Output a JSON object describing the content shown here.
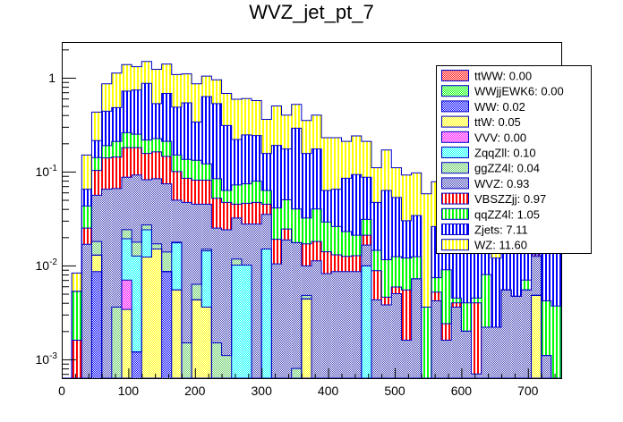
{
  "chart_data": {
    "type": "bar",
    "subtype": "stacked-histogram",
    "title": "WVZ_jet_pt_7",
    "xlabel": "",
    "ylabel": "",
    "y_scale": "log",
    "xlim": [
      0,
      750
    ],
    "ylim": [
      0.00063,
      2.4
    ],
    "bin_width": 15,
    "n_bins": 50,
    "x_ticks": [
      "0",
      "100",
      "200",
      "300",
      "400",
      "500",
      "600",
      "700"
    ],
    "y_ticks": [
      {
        "value": 1,
        "base": "1",
        "exp": ""
      },
      {
        "value": 0.1,
        "base": "10",
        "exp": "-1"
      },
      {
        "value": 0.01,
        "base": "10",
        "exp": "-2"
      },
      {
        "value": 0.001,
        "base": "10",
        "exp": "-3"
      }
    ],
    "legend_position": "top-right",
    "values_are_stacked_cumulative": true,
    "series": [
      {
        "name": "ttWW",
        "legend": "ttWW: 0.00",
        "color": "#ff0000",
        "fill": "checker",
        "cumulative": [
          0,
          0,
          0,
          0,
          0,
          0,
          0,
          0,
          0,
          0,
          0,
          0,
          0,
          0,
          0,
          0,
          0,
          0,
          0,
          0,
          0,
          0,
          0,
          0,
          0,
          0,
          0,
          0,
          0,
          0,
          0,
          0,
          0,
          0,
          0,
          0,
          0,
          0,
          0,
          0,
          0,
          0,
          0,
          0,
          0,
          0,
          0,
          0,
          0,
          0
        ]
      },
      {
        "name": "WWjjEWK6",
        "legend": "WWjjEWK6: 0.00",
        "color": "#00ff00",
        "fill": "checker",
        "cumulative": [
          0,
          0,
          0,
          0,
          0,
          0,
          0,
          0,
          0,
          0,
          0,
          0,
          0,
          0,
          0,
          0,
          0,
          0,
          0,
          0,
          0,
          0,
          0,
          0,
          0,
          0,
          0,
          0,
          0,
          0,
          0,
          0,
          0,
          0,
          0,
          0,
          0,
          0,
          0,
          0,
          0,
          0,
          0,
          0,
          0,
          0,
          0,
          0,
          0,
          0
        ]
      },
      {
        "name": "WW",
        "legend": "WW: 0.02",
        "color": "#0000ff",
        "fill": "checker",
        "cumulative": [
          0,
          0,
          0,
          0.0086,
          0,
          0,
          0,
          0.0012,
          0,
          0,
          0.0086,
          0,
          0,
          0,
          0,
          0,
          0,
          0,
          0,
          0,
          0,
          0,
          0,
          0,
          0,
          0,
          0,
          0,
          0,
          0,
          0,
          0,
          0,
          0,
          0,
          0,
          0,
          0,
          0,
          0,
          0,
          0,
          0,
          0,
          0,
          0,
          0,
          0,
          0,
          0
        ]
      },
      {
        "name": "ttW",
        "legend": "ttW: 0.05",
        "color": "#ffff00",
        "fill": "checker",
        "cumulative": [
          0,
          0,
          0,
          0.0129,
          0,
          0,
          0.0034,
          0.0012,
          0.0123,
          0.015,
          0.0086,
          0.0055,
          0,
          0.0043,
          0.0036,
          0,
          0,
          0,
          0,
          0,
          0,
          0,
          0,
          0,
          0.0044,
          0,
          0,
          0,
          0,
          0,
          0,
          0,
          0,
          0,
          0,
          0,
          0,
          0,
          0,
          0,
          0,
          0,
          0,
          0,
          0,
          0,
          0,
          0.0048,
          0,
          0
        ]
      },
      {
        "name": "VVV",
        "legend": "VVV: 0.00",
        "color": "#ff00ff",
        "fill": "checker",
        "cumulative": [
          0,
          0,
          0,
          0.0129,
          0,
          0,
          0.007,
          0.0012,
          0.0123,
          0.015,
          0.0086,
          0.0055,
          0,
          0.0043,
          0.0036,
          0,
          0,
          0,
          0,
          0,
          0,
          0,
          0,
          0,
          0.0044,
          0,
          0,
          0,
          0,
          0,
          0,
          0,
          0,
          0,
          0,
          0,
          0,
          0,
          0,
          0,
          0,
          0,
          0,
          0,
          0,
          0,
          0,
          0.0048,
          0,
          0
        ]
      },
      {
        "name": "ZqqZll",
        "legend": "ZqqZll: 0.10",
        "color": "#00ffff",
        "fill": "checker",
        "cumulative": [
          0,
          0,
          0,
          0.0129,
          0,
          0,
          0.0193,
          0.0126,
          0.024,
          0.015,
          0.0086,
          0.0174,
          0,
          0.0043,
          0.0143,
          0,
          0,
          0.0101,
          0.0101,
          0,
          0.015,
          0,
          0,
          0,
          0.0044,
          0,
          0,
          0,
          0,
          0,
          0.0099,
          0,
          0,
          0,
          0,
          0,
          0,
          0,
          0,
          0,
          0,
          0,
          0,
          0,
          0,
          0,
          0,
          0.0048,
          0,
          0
        ]
      },
      {
        "name": "ggZZ4l",
        "legend": "ggZZ4l: 0.04",
        "color": "#66cc66",
        "fill": "checker",
        "cumulative": [
          0,
          0,
          0,
          0.018,
          0,
          0.0036,
          0.0241,
          0.0177,
          0.027,
          0.017,
          0.0139,
          0.0177,
          0.0015,
          0.0063,
          0.0149,
          0.0015,
          0.0011,
          0.0117,
          0.0101,
          0,
          0.015,
          0,
          0,
          0.0008,
          0.0048,
          0,
          0,
          0,
          0,
          0,
          0.0099,
          0,
          0,
          0,
          0,
          0,
          0,
          0,
          0,
          0,
          0,
          0,
          0,
          0,
          0,
          0,
          0,
          0.0048,
          0,
          0
        ]
      },
      {
        "name": "WVZ",
        "legend": "WVZ: 0.93",
        "color": "#4848b8",
        "fill": "checker",
        "cumulative": [
          0,
          0,
          0.0168,
          0.056,
          0.065,
          0.066,
          0.087,
          0.092,
          0.082,
          0.084,
          0.074,
          0.0496,
          0.047,
          0.045,
          0.045,
          0.025,
          0.024,
          0.032,
          0.0276,
          0.0276,
          0.035,
          0.0104,
          0.0187,
          0.0175,
          0.0099,
          0.0112,
          0.0082,
          0.0086,
          0.0086,
          0.0086,
          0.0165,
          0.0043,
          0.0038,
          0.005,
          0.0016,
          0.0072,
          0,
          0.0042,
          0.0016,
          0.0036,
          0.002,
          0.0007,
          0.0022,
          0.0022,
          0.0055,
          0.0047,
          0.0055,
          0.0125,
          0.0011,
          0
        ]
      },
      {
        "name": "VBSZZjj",
        "legend": "VBSZZjj: 0.97",
        "color": "#ff0000",
        "fill": "stripes",
        "cumulative": [
          0,
          0.0016,
          0.025,
          0.103,
          0.14,
          0.143,
          0.18,
          0.18,
          0.156,
          0.162,
          0.145,
          0.1,
          0.085,
          0.081,
          0.081,
          0.052,
          0.047,
          0.045,
          0.046,
          0.047,
          0.045,
          0.019,
          0.0245,
          0.0175,
          0.017,
          0.018,
          0.014,
          0.013,
          0.0125,
          0.0127,
          0.021,
          0.0088,
          0.0046,
          0.0059,
          0.0055,
          0.0072,
          0,
          0.0052,
          0.0024,
          0.004,
          0.002,
          0.004,
          0.0022,
          0.0022,
          0.0055,
          0.0047,
          0.0055,
          0.013,
          0.0011,
          0
        ]
      },
      {
        "name": "qqZZ4l",
        "legend": "qqZZ4l: 1.05",
        "color": "#00ff00",
        "fill": "stripes",
        "cumulative": [
          0,
          0.0053,
          0.043,
          0.141,
          0.189,
          0.209,
          0.26,
          0.25,
          0.217,
          0.225,
          0.21,
          0.15,
          0.135,
          0.132,
          0.121,
          0.084,
          0.063,
          0.072,
          0.074,
          0.079,
          0.063,
          0.041,
          0.05,
          0.04,
          0.032,
          0.04,
          0.029,
          0.026,
          0.023,
          0.021,
          0.031,
          0.0145,
          0.0115,
          0.0124,
          0.012,
          0.0124,
          0.0036,
          0.0074,
          0.009,
          0.0045,
          0.004,
          0.0045,
          0.008,
          0.0022,
          0.0055,
          0.0047,
          0.007,
          0.013,
          0.0042,
          0.0037
        ]
      },
      {
        "name": "Zjets",
        "legend": "Zjets: 7.11",
        "color": "#0000ff",
        "fill": "stripes",
        "cumulative": [
          0,
          0.0053,
          0.065,
          0.214,
          0.44,
          0.48,
          0.72,
          0.74,
          0.87,
          0.53,
          0.68,
          0.485,
          0.54,
          0.337,
          0.63,
          0.53,
          0.31,
          0.22,
          0.246,
          0.242,
          0.156,
          0.19,
          0.174,
          0.29,
          0.156,
          0.174,
          0.063,
          0.065,
          0.085,
          0.093,
          0.087,
          0.047,
          0.063,
          0.053,
          0.03,
          0.034,
          0.0036,
          0.026,
          0.02,
          0.02,
          0.018,
          0.02,
          0.022,
          0.012,
          0.022,
          0.017,
          0.019,
          0.025,
          0.02,
          0.0165
        ]
      },
      {
        "name": "WZ",
        "legend": "WZ: 11.60",
        "color": "#ffff00",
        "fill": "stripes",
        "cumulative": [
          0,
          0.0083,
          0.15,
          0.43,
          0.86,
          1.12,
          1.38,
          1.31,
          1.49,
          1.23,
          1.4,
          1.08,
          1.1,
          0.86,
          1.04,
          0.95,
          0.68,
          0.59,
          0.6,
          0.57,
          0.36,
          0.5,
          0.4,
          0.52,
          0.35,
          0.4,
          0.23,
          0.23,
          0.21,
          0.24,
          0.21,
          0.11,
          0.17,
          0.11,
          0.092,
          0.097,
          0.058,
          0.078,
          0.03,
          0.028,
          0.04,
          0.04,
          0.04,
          0.045,
          0.035,
          0.035,
          0.035,
          0.04,
          0.03,
          0.02
        ]
      }
    ]
  }
}
